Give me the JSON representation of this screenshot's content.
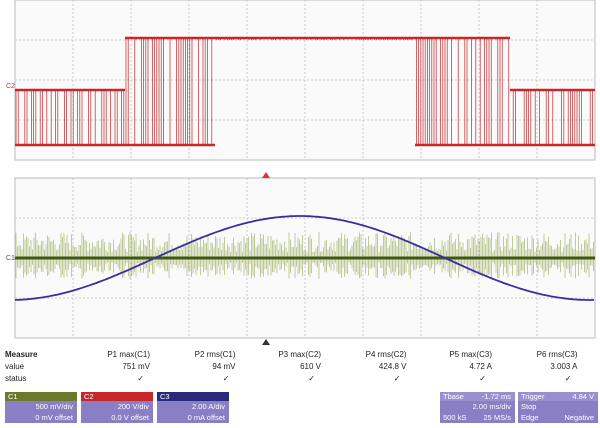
{
  "traces": {
    "upper_label": "C2",
    "lower_label": "C1"
  },
  "measure": {
    "title": "Measure",
    "row_labels": [
      "value",
      "status"
    ],
    "items": [
      {
        "name": "P1 max(C1)",
        "value": "751 mV",
        "status": "✓"
      },
      {
        "name": "P2 rms(C1)",
        "value": "94 mV",
        "status": "✓"
      },
      {
        "name": "P3 max(C2)",
        "value": "610 V",
        "status": "✓"
      },
      {
        "name": "P4 rms(C2)",
        "value": "424.8 V",
        "status": "✓"
      },
      {
        "name": "P5 max(C3)",
        "value": "4.72 A",
        "status": "✓"
      },
      {
        "name": "P6 rms(C3)",
        "value": "3.003 A",
        "status": "✓"
      }
    ]
  },
  "channels": [
    {
      "name": "C1",
      "scale": "500 mV/div",
      "offset": "0 mV offset"
    },
    {
      "name": "C2",
      "scale": "200 V/div",
      "offset": "0.0 V offset"
    },
    {
      "name": "C3",
      "scale": "2.00 A/div",
      "offset": "0 mA offset"
    }
  ],
  "timebase": {
    "title": "Tbase",
    "delay": "-1.72 ms",
    "scale": "2.00 ms/div",
    "points": "500 kS",
    "rate": "25 MS/s"
  },
  "trigger": {
    "title": "Trigger",
    "level": "4.84 V",
    "mode": "Stop",
    "type": "Edge",
    "slope": "Negative"
  }
}
